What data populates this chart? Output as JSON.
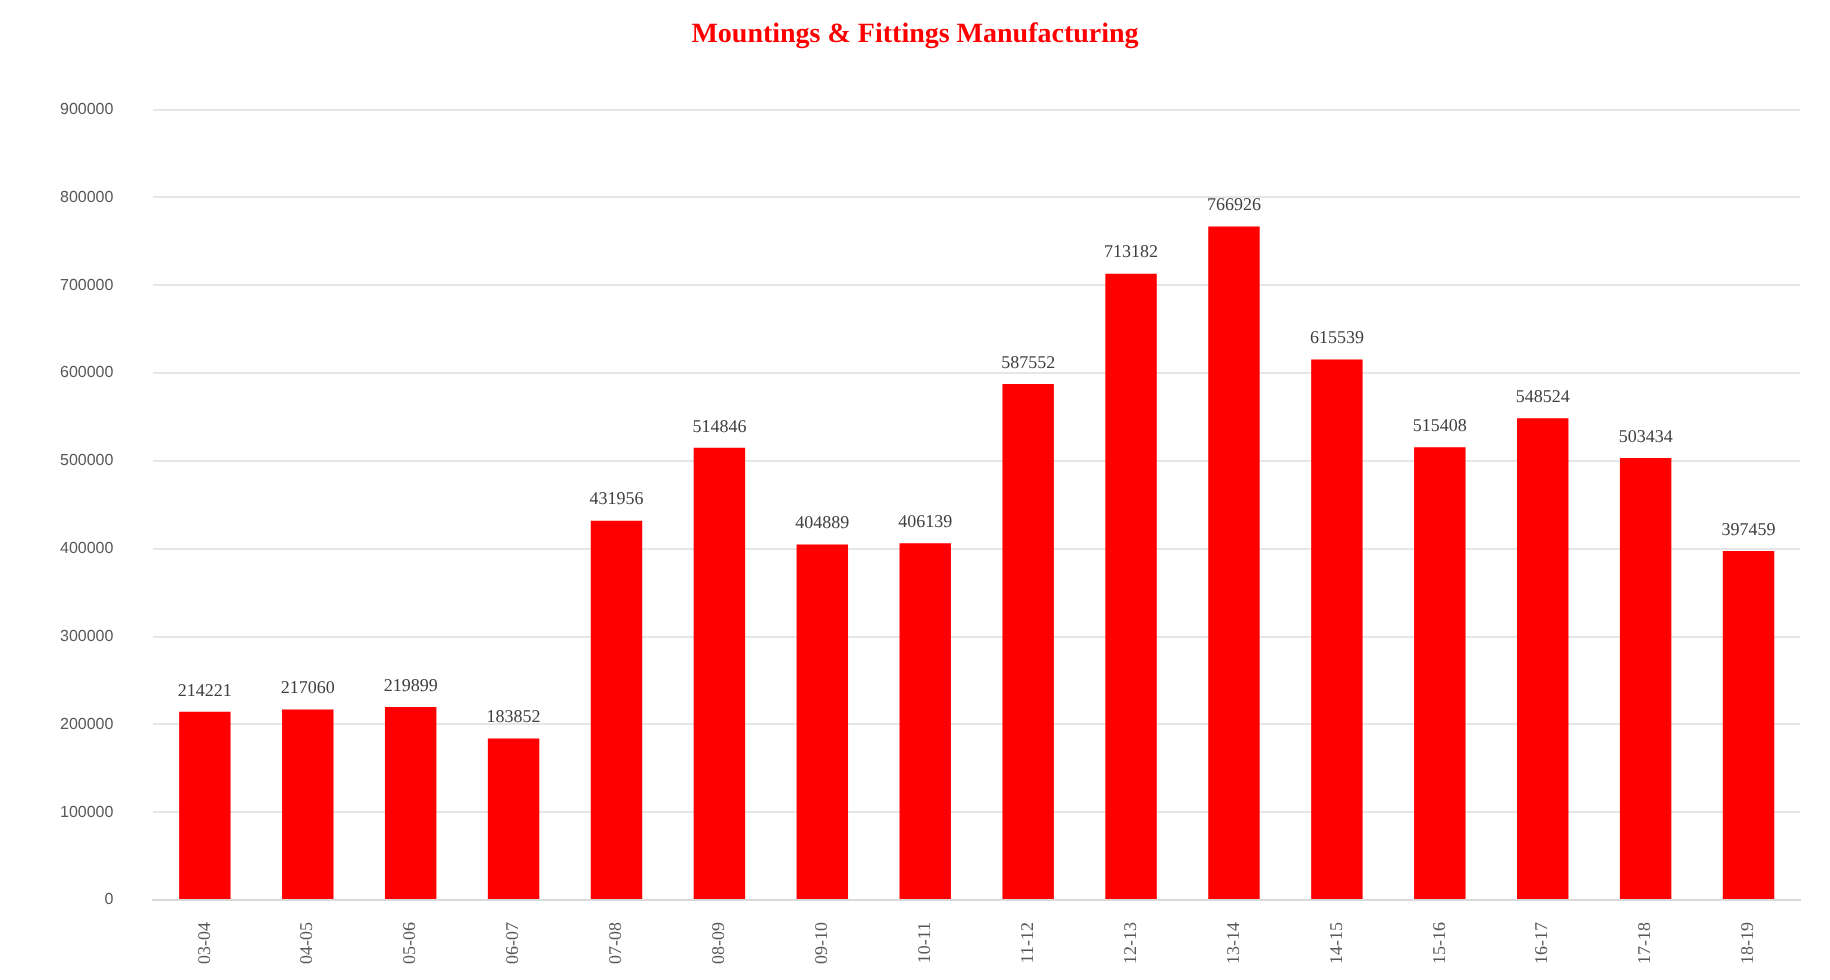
{
  "chart_data": {
    "type": "bar",
    "title": "Mountings & Fittings Manufacturing",
    "categories": [
      "03-04",
      "04-05",
      "05-06",
      "06-07",
      "07-08",
      "08-09",
      "09-10",
      "10-11",
      "11-12",
      "12-13",
      "13-14",
      "14-15",
      "15-16",
      "16-17",
      "17-18",
      "18-19"
    ],
    "values": [
      214221,
      217060,
      219899,
      183852,
      431956,
      514846,
      404889,
      406139,
      587552,
      713182,
      766926,
      615539,
      515408,
      548524,
      503434,
      397459
    ],
    "color": "#ff0000",
    "ylim": [
      0,
      900000
    ],
    "yticks": [
      0,
      100000,
      200000,
      300000,
      400000,
      500000,
      600000,
      700000,
      800000,
      900000
    ],
    "grid": "y",
    "data_labels": true
  }
}
